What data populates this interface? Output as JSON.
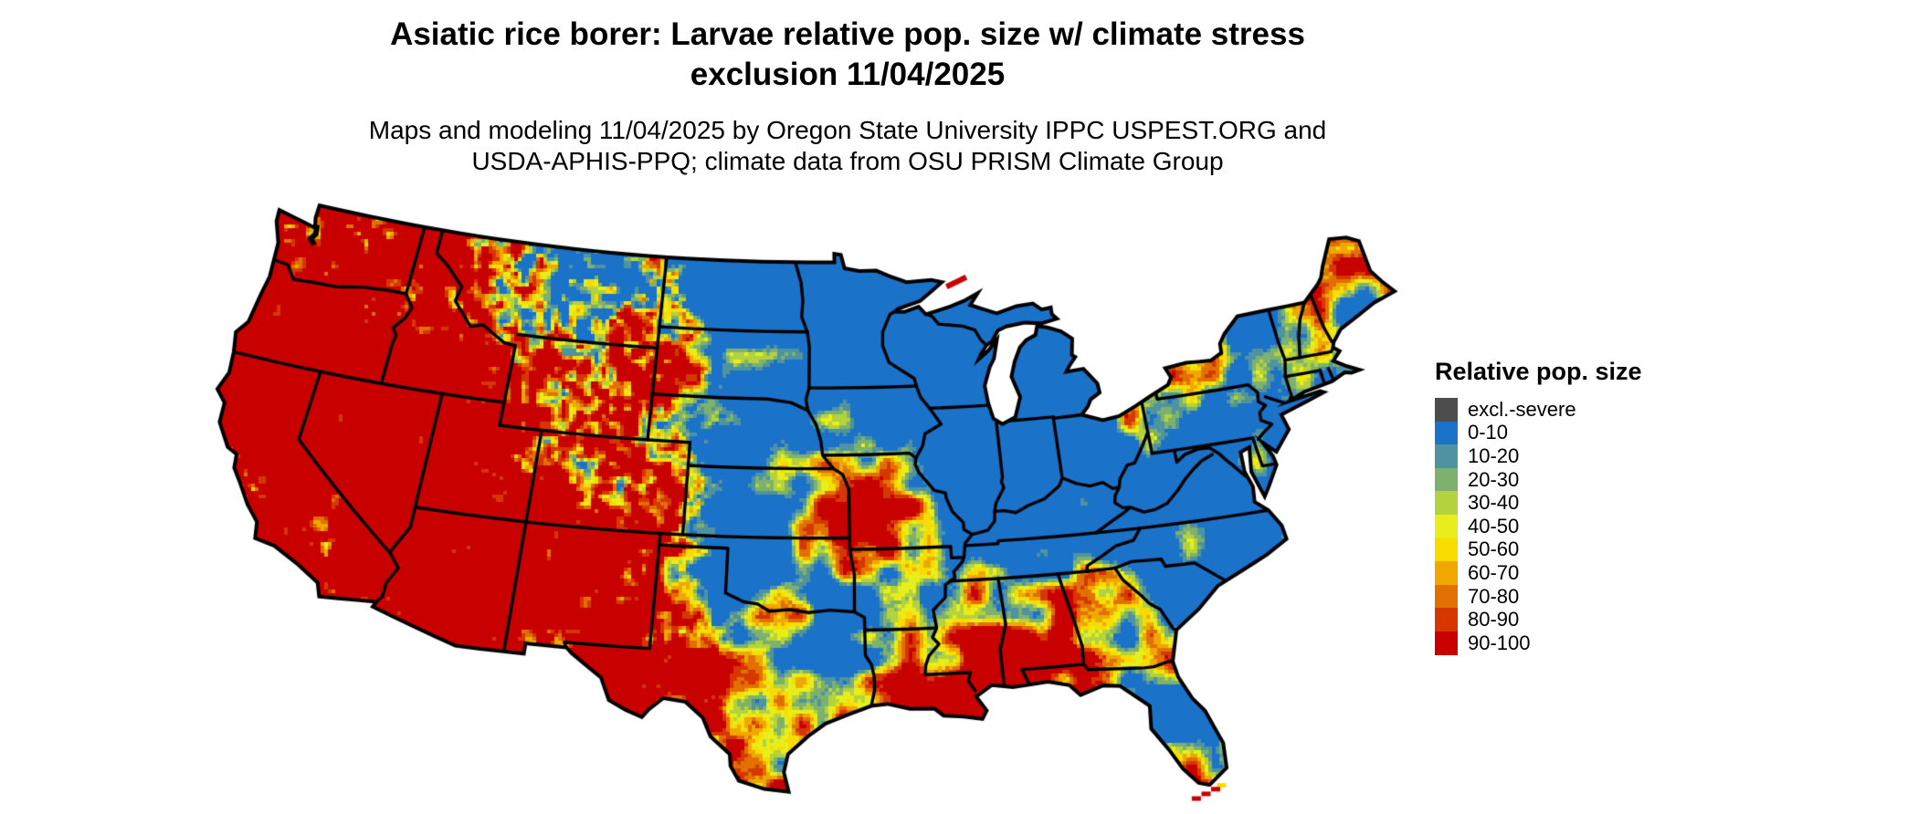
{
  "header": {
    "title_line1": "Asiatic rice borer: Larvae relative pop. size w/ climate stress",
    "title_line2": "exclusion 11/04/2025",
    "subtitle_line1": "Maps and modeling 11/04/2025 by Oregon State University IPPC USPEST.ORG and",
    "subtitle_line2": "USDA-APHIS-PPQ; climate data from OSU PRISM Climate Group"
  },
  "map": {
    "region_label": "Continental United States relative population size raster"
  },
  "legend": {
    "title": "Relative pop. size",
    "items": [
      {
        "label": "excl.-severe",
        "color": "#4d4d4d"
      },
      {
        "label": "0-10",
        "color": "#1b72c9"
      },
      {
        "label": "10-20",
        "color": "#4e93a0"
      },
      {
        "label": "20-30",
        "color": "#7db16e"
      },
      {
        "label": "30-40",
        "color": "#b4d23e"
      },
      {
        "label": "40-50",
        "color": "#e7ee1b"
      },
      {
        "label": "50-60",
        "color": "#f8dc00"
      },
      {
        "label": "60-70",
        "color": "#efa800"
      },
      {
        "label": "70-80",
        "color": "#e17000"
      },
      {
        "label": "80-90",
        "color": "#d63700"
      },
      {
        "label": "90-100",
        "color": "#c80000"
      }
    ]
  }
}
